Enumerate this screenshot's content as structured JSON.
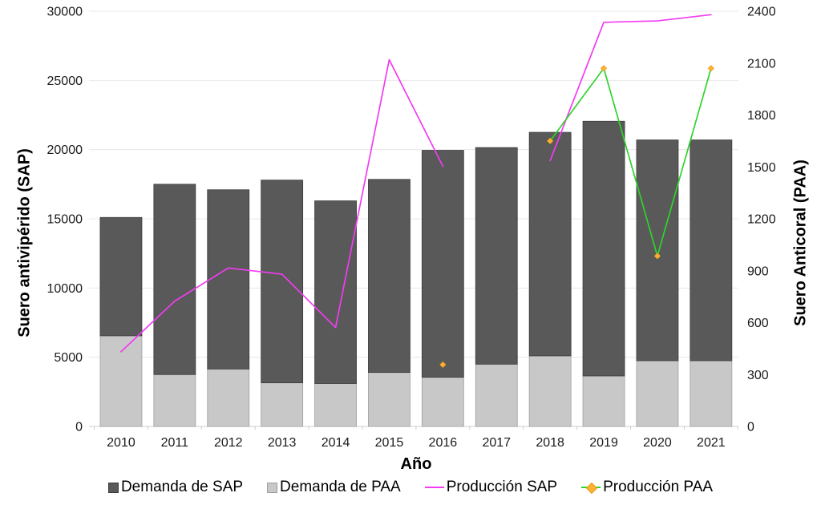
{
  "chart_data": {
    "type": "combo (stacked bar + lines)",
    "title": "",
    "categories": [
      "2010",
      "2011",
      "2012",
      "2013",
      "2014",
      "2015",
      "2016",
      "2017",
      "2018",
      "2019",
      "2020",
      "2021"
    ],
    "stack_order_note": "Demanda de PAA segment drawn at bottom of stack, Demanda de SAP on top; line Producción SAP reads on left axis, line Producción PAA reads on right axis",
    "series": [
      {
        "name": "Demanda de SAP",
        "type": "bar",
        "axis": "left",
        "color": "#595959",
        "border_color": "#3b3b3b",
        "values": [
          8550,
          13750,
          12950,
          14650,
          13200,
          13950,
          16400,
          15650,
          16150,
          18400,
          15950,
          15950
        ]
      },
      {
        "name": "Demanda de PAA",
        "type": "bar",
        "axis": "left",
        "color": "#c8c8c8",
        "border_color": "#9f9f9f",
        "values": [
          6550,
          3750,
          4150,
          3150,
          3100,
          3900,
          3550,
          4500,
          5100,
          3650,
          4750,
          4750
        ]
      },
      {
        "name": "Producción SAP",
        "type": "line",
        "axis": "left",
        "color": "#f23cf2",
        "values": [
          5400,
          9050,
          11450,
          11000,
          7150,
          26500,
          18800,
          null,
          19200,
          29200,
          29300,
          29750
        ]
      },
      {
        "name": "Producción PAA",
        "type": "line",
        "axis": "right",
        "color": "#2fd32f",
        "marker": "diamond",
        "marker_color": "#ffb132",
        "marker_border_color": "#e89a20",
        "values": [
          null,
          null,
          null,
          null,
          null,
          null,
          357,
          null,
          1650,
          2070,
          985,
          2070
        ]
      }
    ],
    "left_axis": {
      "title": "Suero antivipérido (SAP)",
      "min": 0,
      "max": 30000,
      "ticks": [
        0,
        5000,
        10000,
        15000,
        20000,
        25000,
        30000
      ]
    },
    "right_axis": {
      "title": "Suero Anticoral (PAA)",
      "min": 0,
      "max": 2400,
      "ticks": [
        0,
        300,
        600,
        900,
        1200,
        1500,
        1800,
        2100,
        2400
      ]
    },
    "x_axis": {
      "title": "Año"
    },
    "grid": "horizontal gridlines at left-axis ticks",
    "legend_position": "bottom"
  }
}
